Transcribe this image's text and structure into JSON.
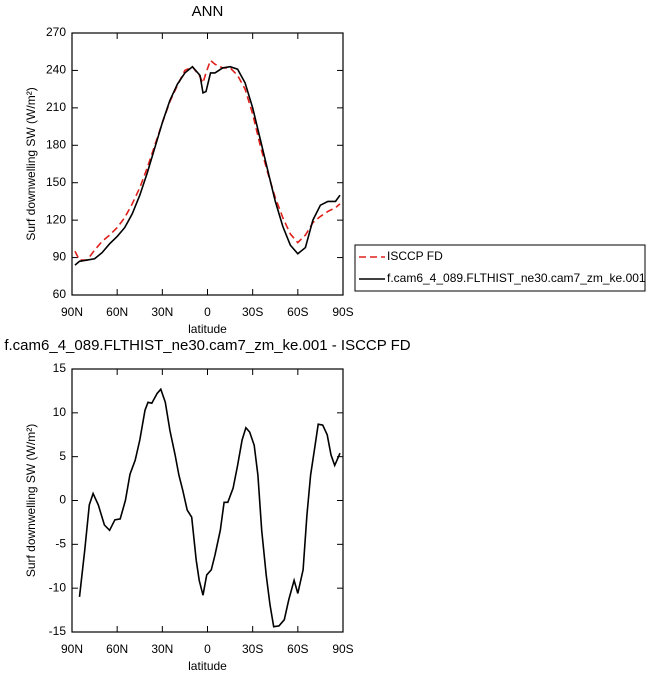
{
  "chart_data": [
    {
      "type": "line",
      "title": "ANN",
      "x_label": "latitude",
      "y_label": "Surf downwelling SW (W/m²)",
      "x": [
        88,
        85,
        80,
        75,
        70,
        65,
        60,
        55,
        50,
        45,
        40,
        35,
        30,
        25,
        20,
        15,
        10,
        5,
        3,
        1,
        -2,
        -5,
        -10,
        -15,
        -20,
        -25,
        -30,
        -35,
        -40,
        -45,
        -50,
        -55,
        -60,
        -65,
        -70,
        -75,
        -80,
        -85,
        -88
      ],
      "series": [
        {
          "name": "ISCCP FD",
          "color": "#e0201b",
          "dash": true,
          "values": [
            95,
            88,
            88,
            96,
            103,
            108,
            114,
            122,
            133,
            146,
            162,
            180,
            198,
            215,
            228,
            240,
            243,
            235,
            230,
            238,
            248,
            245,
            242,
            242,
            236,
            225,
            205,
            180,
            158,
            138,
            122,
            109,
            102,
            108,
            118,
            123,
            127,
            130,
            133
          ]
        },
        {
          "name": "f.cam6_4_089.FLTHIST_ne30.cam7_zm_ke.001",
          "color": "#000000",
          "dash": false,
          "values": [
            84,
            87,
            88,
            89,
            94,
            101,
            107,
            114,
            125,
            140,
            158,
            178,
            198,
            216,
            229,
            238,
            243,
            236,
            222,
            223,
            238,
            238,
            242,
            243,
            241,
            230,
            210,
            185,
            160,
            135,
            115,
            100,
            93,
            98,
            120,
            132,
            135,
            135,
            140
          ]
        }
      ],
      "xlim": [
        90,
        -90
      ],
      "xticks": [
        {
          "value": 90,
          "label": "90N"
        },
        {
          "value": 60,
          "label": "60N"
        },
        {
          "value": 30,
          "label": "30N"
        },
        0,
        {
          "value": -30,
          "label": "30S"
        },
        {
          "value": -60,
          "label": "60S"
        },
        {
          "value": -90,
          "label": "90S"
        }
      ],
      "ylim": [
        60,
        270
      ],
      "yticks": [
        60,
        90,
        120,
        150,
        180,
        210,
        240,
        270
      ],
      "legend": "right"
    },
    {
      "type": "line",
      "title": "f.cam6_4_089.FLTHIST_ne30.cam7_zm_ke.001 - ISCCP FD",
      "x_label": "latitude",
      "y_label": "Surf downwelling SW (W/m²)",
      "x": [
        85,
        81.5,
        78.5,
        76,
        72.5,
        68.5,
        65,
        61.5,
        58,
        54.5,
        51.5,
        48,
        45,
        41.5,
        39.5,
        37,
        33.5,
        31,
        28,
        25,
        21.5,
        19,
        16.5,
        13.5,
        10.5,
        7.5,
        5.5,
        3,
        0.5,
        -2.5,
        -5,
        -8.5,
        -11,
        -13.5,
        -17,
        -20,
        -23,
        -25.5,
        -28,
        -31,
        -33.5,
        -36,
        -39,
        -41.5,
        -44,
        -47.5,
        -51,
        -54,
        -57.5,
        -60,
        -63.5,
        -66,
        -68.5,
        -71.5,
        -73.5,
        -76.5,
        -79.5,
        -82,
        -84.5,
        -88
      ],
      "series": [
        {
          "name": "f.cam6_4_089.FLTHIST_ne30.cam7_zm_ke.001 - ISCCP FD",
          "color": "#000000",
          "dash": false,
          "values": [
            -11,
            -5.6,
            -0.5,
            0.8,
            -0.5,
            -2.8,
            -3.4,
            -2.2,
            -2.1,
            0,
            3,
            4.6,
            6.9,
            10.3,
            11.2,
            11.1,
            12.2,
            12.7,
            11.2,
            8,
            5.2,
            2.9,
            1.2,
            -1.1,
            -1.9,
            -6.8,
            -9.1,
            -10.8,
            -8.5,
            -7.9,
            -6.2,
            -3.4,
            -0.2,
            -0.2,
            1.4,
            4,
            6.9,
            8.3,
            7.8,
            6.3,
            2.9,
            -3.4,
            -8.5,
            -11.9,
            -14.4,
            -14.3,
            -13.6,
            -11.3,
            -9.1,
            -10.6,
            -7.9,
            -1.7,
            2.9,
            6.3,
            8.7,
            8.6,
            7.5,
            5.2,
            4,
            5.4
          ]
        }
      ],
      "xlim": [
        90,
        -90
      ],
      "xticks": [
        {
          "value": 90,
          "label": "90N"
        },
        {
          "value": 60,
          "label": "60N"
        },
        {
          "value": 30,
          "label": "30N"
        },
        0,
        {
          "value": -30,
          "label": "30S"
        },
        {
          "value": -60,
          "label": "60S"
        },
        {
          "value": -90,
          "label": "90S"
        }
      ],
      "ylim": [
        -15,
        15
      ],
      "yticks": [
        -15,
        -10,
        -5,
        0,
        5,
        10,
        15
      ],
      "legend": "none"
    }
  ]
}
